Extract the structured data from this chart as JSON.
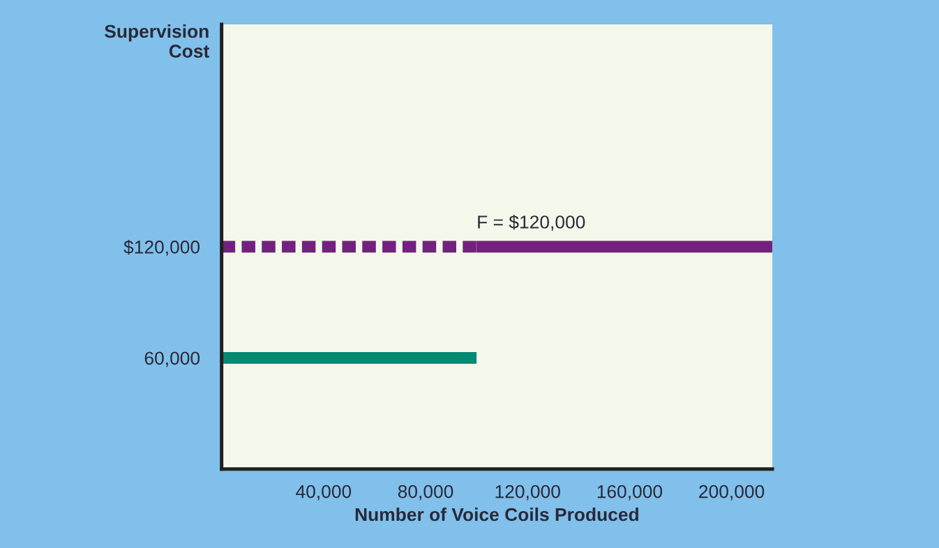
{
  "chart_data": {
    "type": "line",
    "xlabel": "Number of Voice Coils Produced",
    "ylabel": "Supervision\nCost",
    "xlim": [
      0,
      216000
    ],
    "xticks": [
      {
        "value": 40000,
        "label": "40,000"
      },
      {
        "value": 80000,
        "label": "80,000"
      },
      {
        "value": 120000,
        "label": "120,000"
      },
      {
        "value": 160000,
        "label": "160,000"
      },
      {
        "value": 200000,
        "label": "200,000"
      }
    ],
    "ylim": [
      0,
      240000
    ],
    "yticks": [
      {
        "value": 60000,
        "label": "60,000"
      },
      {
        "value": 120000,
        "label": "$120,000"
      }
    ],
    "series": [
      {
        "color": "#008a73",
        "x": [
          0,
          100000
        ],
        "values": [
          60000,
          60000
        ],
        "line_style": "solid"
      },
      {
        "color": "#72227e",
        "x": [
          0,
          100000
        ],
        "values": [
          120000,
          120000
        ],
        "line_style": "dotted"
      },
      {
        "color": "#72227e",
        "x": [
          100000,
          216000
        ],
        "values": [
          120000,
          120000
        ],
        "line_style": "solid"
      }
    ],
    "annotations": [
      {
        "text": "F = $120,000",
        "x": 100000,
        "y": 120000
      }
    ],
    "grid": false,
    "marker": "none"
  }
}
